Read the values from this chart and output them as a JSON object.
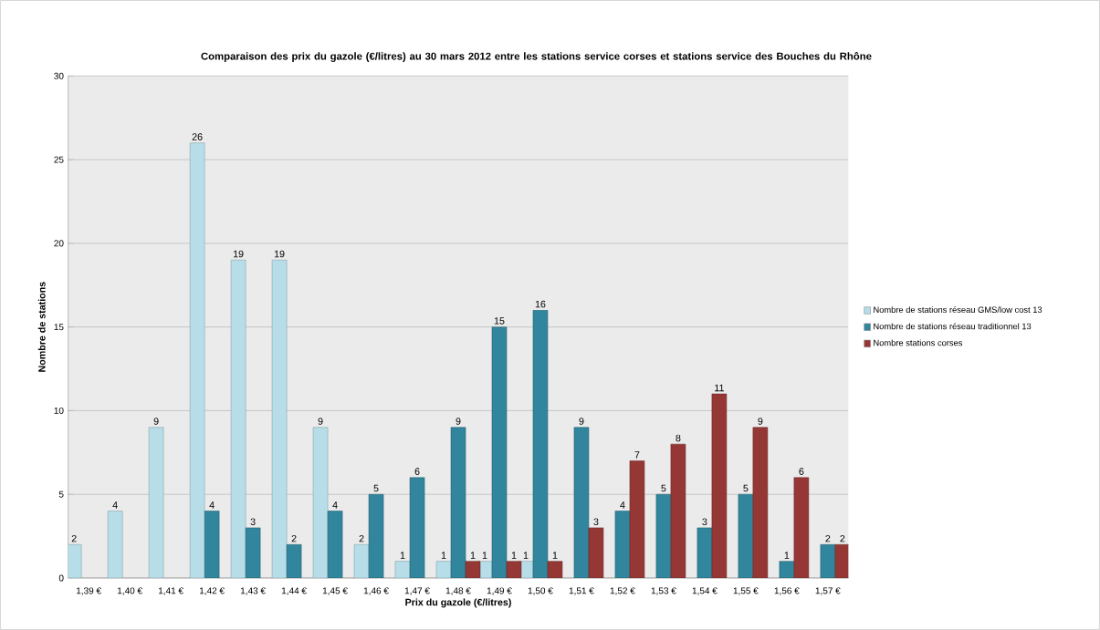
{
  "chart_data": {
    "type": "bar",
    "title": "Comparaison des prix du gazole (€/litres) au 30 mars 2012 entre les stations service corses et stations service des Bouches du Rhône",
    "xlabel": "Prix du gazole (€/litres)",
    "ylabel": "Nombre de stations",
    "categories": [
      "1,39 €",
      "1,40 €",
      "1,41 €",
      "1,42 €",
      "1,43 €",
      "1,44 €",
      "1,45 €",
      "1,46 €",
      "1,47 €",
      "1,48 €",
      "1,49 €",
      "1,50 €",
      "1,51 €",
      "1,52 €",
      "1,53 €",
      "1,54 €",
      "1,55 €",
      "1,56 €",
      "1,57 €"
    ],
    "series": [
      {
        "name": "Nombre de stations réseau GMS/low cost 13",
        "color": "#b7dee8",
        "values": [
          2,
          4,
          9,
          26,
          19,
          19,
          9,
          2,
          1,
          1,
          1,
          1,
          null,
          null,
          null,
          null,
          null,
          null,
          null
        ]
      },
      {
        "name": "Nombre de stations réseau traditionnel 13",
        "color": "#31859c",
        "values": [
          null,
          null,
          null,
          4,
          3,
          2,
          4,
          5,
          6,
          9,
          15,
          16,
          9,
          4,
          5,
          3,
          5,
          1,
          2
        ]
      },
      {
        "name": "Nombre stations corses",
        "color": "#953735",
        "values": [
          null,
          null,
          null,
          null,
          null,
          null,
          null,
          null,
          null,
          1,
          1,
          1,
          3,
          7,
          8,
          11,
          9,
          6,
          2
        ]
      }
    ],
    "ylim": [
      0,
      30
    ],
    "yticks": [
      0,
      5,
      10,
      15,
      20,
      25,
      30
    ],
    "grid": "y",
    "legend": "right",
    "data_labels": true
  }
}
